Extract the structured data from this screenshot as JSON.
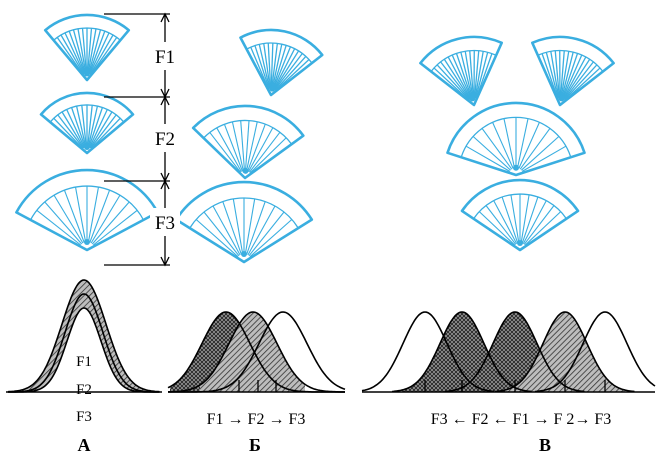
{
  "colors": {
    "fan": "#3aaee0",
    "ink": "#000000",
    "hatch": "#555555"
  },
  "top_labels": {
    "f1": "F1",
    "f2": "F2",
    "f3": "F3"
  },
  "panel_a": {
    "curve_labels": [
      "F1",
      "F2",
      "F3"
    ],
    "letter": "А"
  },
  "panel_b": {
    "caption": "F1 → F2 → F3",
    "letter": "Б"
  },
  "panel_c": {
    "caption": "F3 ← F2 ← F1 → F 2→ F3",
    "letter": "В"
  }
}
